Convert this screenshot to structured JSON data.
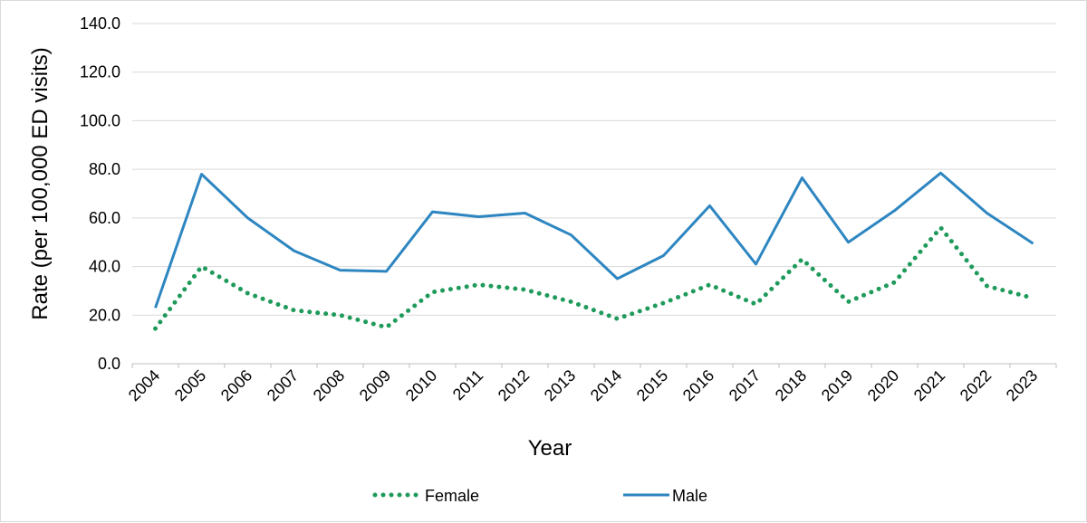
{
  "chart_data": {
    "type": "line",
    "title": "",
    "xlabel": "Year",
    "ylabel": "Rate (per 100,000 ED visits)",
    "ylim": [
      0,
      140
    ],
    "y_ticks": [
      "0.0",
      "20.0",
      "40.0",
      "60.0",
      "80.0",
      "100.0",
      "120.0",
      "140.0"
    ],
    "grid": true,
    "legend_position": "bottom",
    "categories": [
      "2004",
      "2005",
      "2006",
      "2007",
      "2008",
      "2009",
      "2010",
      "2011",
      "2012",
      "2013",
      "2014",
      "2015",
      "2016",
      "2017",
      "2018",
      "2019",
      "2020",
      "2021",
      "2022",
      "2023"
    ],
    "series": [
      {
        "name": "Female",
        "style": "dotted",
        "color": "#1e9a5a",
        "values": [
          14.5,
          40.0,
          29.0,
          22.0,
          20.0,
          15.0,
          29.5,
          32.5,
          30.5,
          25.5,
          18.5,
          25.0,
          32.5,
          24.5,
          43.0,
          25.5,
          33.5,
          56.0,
          32.0,
          27.0
        ]
      },
      {
        "name": "Male",
        "style": "solid",
        "color": "#2e86c1",
        "values": [
          23.0,
          78.0,
          60.0,
          46.5,
          38.5,
          38.0,
          62.5,
          60.5,
          62.0,
          53.0,
          35.0,
          44.5,
          65.0,
          41.0,
          76.5,
          50.0,
          63.0,
          78.5,
          62.0,
          49.5
        ]
      }
    ]
  }
}
